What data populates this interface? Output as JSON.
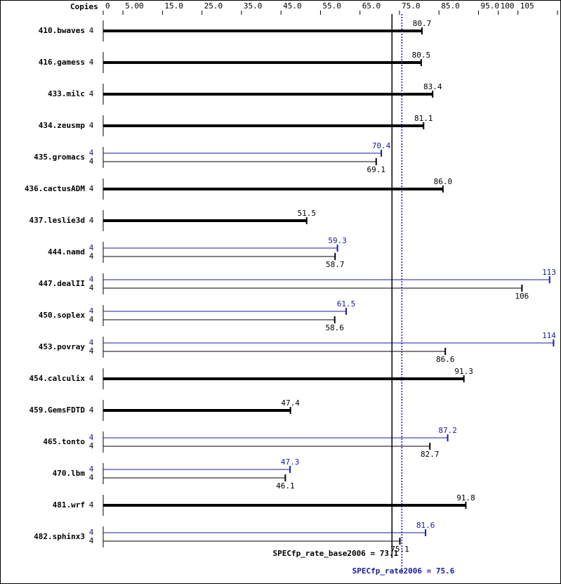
{
  "chart_data": {
    "type": "bar",
    "copies_header": "Copies",
    "categories": [
      "410.bwaves",
      "416.gamess",
      "433.milc",
      "434.zeusmp",
      "435.gromacs",
      "436.cactusADM",
      "437.leslie3d",
      "444.namd",
      "447.dealII",
      "450.soplex",
      "453.povray",
      "454.calculix",
      "459.GemsFDTD",
      "465.tonto",
      "470.lbm",
      "481.wrf",
      "482.sphinx3"
    ],
    "series": [
      {
        "color": "#000000",
        "copies": [
          4,
          4,
          4,
          4,
          4,
          4,
          4,
          4,
          4,
          4,
          4,
          4,
          4,
          4,
          4,
          4,
          4
        ],
        "values": [
          80.7,
          80.5,
          83.4,
          81.1,
          69.1,
          86.0,
          51.5,
          58.7,
          106,
          58.6,
          86.6,
          91.3,
          47.4,
          82.7,
          46.1,
          91.8,
          75.1
        ],
        "value_labels": [
          "80.7",
          "80.5",
          "83.4",
          "81.1",
          "69.1",
          "86.0",
          "51.5",
          "58.7",
          "106",
          "58.6",
          "86.6",
          "91.3",
          "47.4",
          "82.7",
          "46.1",
          "91.8",
          "75.1"
        ]
      },
      {
        "color": "#1a1aa0",
        "copies": [
          null,
          null,
          null,
          null,
          4,
          null,
          null,
          4,
          4,
          4,
          4,
          null,
          null,
          4,
          4,
          null,
          4
        ],
        "values": [
          null,
          null,
          null,
          null,
          70.4,
          null,
          null,
          59.3,
          113,
          61.5,
          114,
          null,
          null,
          87.2,
          47.3,
          null,
          81.6
        ]
      }
    ],
    "xlim": [
      0,
      115
    ],
    "xticks": [
      0,
      {
        "value": 5,
        "label": "5.00"
      },
      {
        "value": 15,
        "label": "15.0"
      },
      {
        "value": 25,
        "label": "25.0"
      },
      {
        "value": 35,
        "label": "35.0"
      },
      {
        "value": 45,
        "label": "45.0"
      },
      {
        "value": 55,
        "label": "55.0"
      },
      {
        "value": 65,
        "label": "65.0"
      },
      {
        "value": 75,
        "label": "75.0"
      },
      {
        "value": 85,
        "label": "85.0"
      },
      {
        "value": 95,
        "label": "95.0"
      },
      100,
      105,
      115
    ],
    "reference_lines": [
      {
        "value": 73.1,
        "label": "SPECfp_rate_base2006 = 73.1",
        "color": "#000000",
        "dashed": false
      },
      {
        "value": 75.6,
        "label": "SPECfp_rate2006 = 75.6",
        "color": "#1a1aa0",
        "dashed": true
      }
    ]
  }
}
